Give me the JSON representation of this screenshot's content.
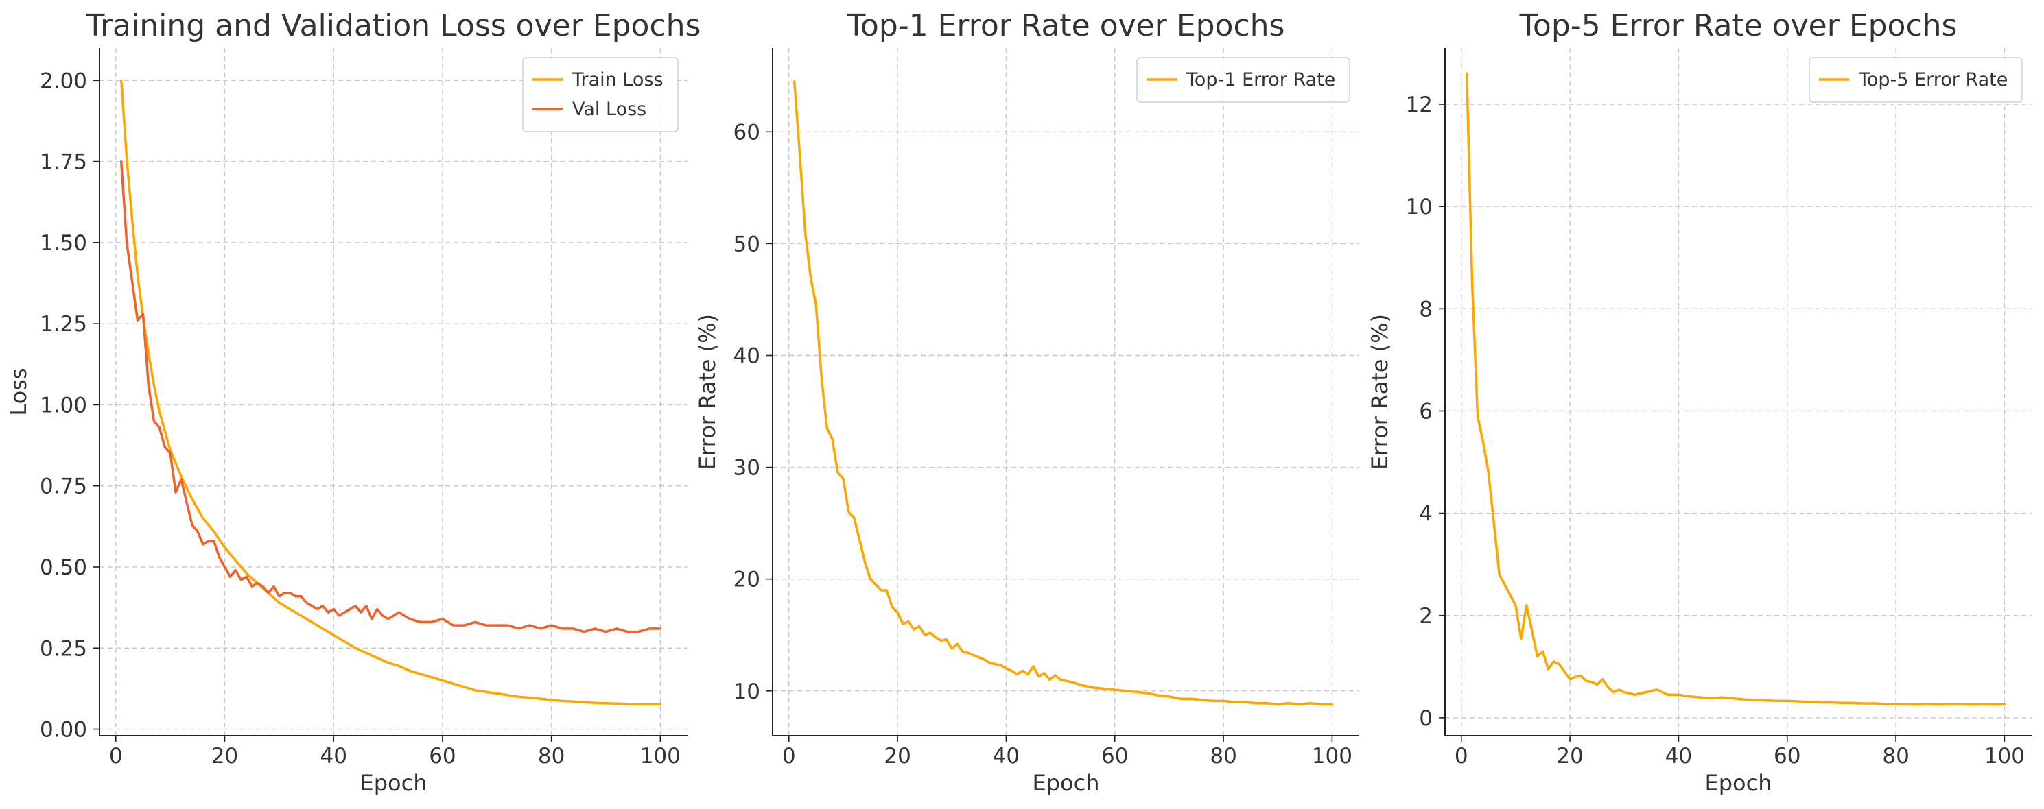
{
  "chart_data": [
    {
      "type": "line",
      "title": "Training and Validation Loss over Epochs",
      "xlabel": "Epoch",
      "ylabel": "Loss",
      "xlim": [
        -3,
        105
      ],
      "ylim": [
        -0.02,
        2.1
      ],
      "xticks": [
        0,
        20,
        40,
        60,
        80,
        100
      ],
      "yticks": [
        0.0,
        0.25,
        0.5,
        0.75,
        1.0,
        1.25,
        1.5,
        1.75,
        2.0
      ],
      "ytick_decimals": 2,
      "grid": true,
      "legend_position": "top-right",
      "series": [
        {
          "name": "Train Loss",
          "color": "#FFA500",
          "x": [
            1,
            2,
            3,
            4,
            5,
            6,
            7,
            8,
            9,
            10,
            12,
            14,
            16,
            18,
            20,
            22,
            24,
            26,
            28,
            30,
            32,
            34,
            36,
            38,
            40,
            42,
            44,
            46,
            48,
            50,
            52,
            54,
            56,
            58,
            60,
            62,
            64,
            66,
            68,
            70,
            72,
            74,
            76,
            78,
            80,
            82,
            84,
            86,
            88,
            90,
            92,
            94,
            96,
            98,
            100
          ],
          "y": [
            2.0,
            1.76,
            1.57,
            1.4,
            1.27,
            1.16,
            1.06,
            0.98,
            0.92,
            0.86,
            0.78,
            0.71,
            0.65,
            0.61,
            0.56,
            0.52,
            0.48,
            0.45,
            0.42,
            0.39,
            0.37,
            0.35,
            0.33,
            0.31,
            0.29,
            0.27,
            0.25,
            0.235,
            0.22,
            0.205,
            0.195,
            0.18,
            0.17,
            0.16,
            0.15,
            0.14,
            0.13,
            0.12,
            0.115,
            0.11,
            0.105,
            0.1,
            0.097,
            0.094,
            0.09,
            0.087,
            0.085,
            0.083,
            0.081,
            0.08,
            0.079,
            0.078,
            0.077,
            0.077,
            0.077
          ]
        },
        {
          "name": "Val Loss",
          "color": "#F0622A",
          "x": [
            1,
            2,
            3,
            4,
            5,
            6,
            7,
            8,
            9,
            10,
            11,
            12,
            13,
            14,
            15,
            16,
            17,
            18,
            19,
            20,
            21,
            22,
            23,
            24,
            25,
            26,
            27,
            28,
            29,
            30,
            31,
            32,
            33,
            34,
            35,
            36,
            37,
            38,
            39,
            40,
            41,
            42,
            43,
            44,
            45,
            46,
            47,
            48,
            49,
            50,
            52,
            54,
            56,
            58,
            60,
            62,
            64,
            66,
            68,
            70,
            72,
            74,
            76,
            78,
            80,
            82,
            84,
            86,
            88,
            90,
            92,
            94,
            96,
            98,
            100
          ],
          "y": [
            1.75,
            1.5,
            1.38,
            1.26,
            1.28,
            1.06,
            0.95,
            0.93,
            0.87,
            0.85,
            0.73,
            0.77,
            0.7,
            0.63,
            0.61,
            0.57,
            0.58,
            0.58,
            0.53,
            0.5,
            0.47,
            0.49,
            0.46,
            0.47,
            0.44,
            0.45,
            0.44,
            0.42,
            0.44,
            0.41,
            0.42,
            0.42,
            0.41,
            0.41,
            0.39,
            0.38,
            0.37,
            0.38,
            0.36,
            0.37,
            0.35,
            0.36,
            0.37,
            0.38,
            0.36,
            0.38,
            0.34,
            0.37,
            0.35,
            0.34,
            0.36,
            0.34,
            0.33,
            0.33,
            0.34,
            0.32,
            0.32,
            0.33,
            0.32,
            0.32,
            0.32,
            0.31,
            0.32,
            0.31,
            0.32,
            0.31,
            0.31,
            0.3,
            0.31,
            0.3,
            0.31,
            0.3,
            0.3,
            0.31,
            0.31
          ]
        }
      ]
    },
    {
      "type": "line",
      "title": "Top-1 Error Rate over Epochs",
      "xlabel": "Epoch",
      "ylabel": "Error Rate (%)",
      "xlim": [
        -3,
        105
      ],
      "ylim": [
        6,
        67.5
      ],
      "xticks": [
        0,
        20,
        40,
        60,
        80,
        100
      ],
      "yticks": [
        10,
        20,
        30,
        40,
        50,
        60
      ],
      "ytick_decimals": 0,
      "grid": true,
      "legend_position": "top-right",
      "series": [
        {
          "name": "Top-1 Error Rate",
          "color": "#FFA500",
          "x": [
            1,
            2,
            3,
            4,
            5,
            6,
            7,
            8,
            9,
            10,
            11,
            12,
            13,
            14,
            15,
            16,
            17,
            18,
            19,
            20,
            21,
            22,
            23,
            24,
            25,
            26,
            27,
            28,
            29,
            30,
            31,
            32,
            33,
            34,
            35,
            36,
            37,
            38,
            39,
            40,
            41,
            42,
            43,
            44,
            45,
            46,
            47,
            48,
            49,
            50,
            52,
            54,
            56,
            58,
            60,
            62,
            64,
            66,
            68,
            70,
            72,
            74,
            76,
            78,
            80,
            82,
            84,
            86,
            88,
            90,
            92,
            94,
            96,
            98,
            100
          ],
          "y": [
            64.5,
            58,
            51,
            47,
            44.5,
            38,
            33.5,
            32.5,
            29.5,
            29,
            26,
            25.5,
            23.5,
            21.5,
            20,
            19.5,
            19,
            19,
            17.5,
            17,
            16,
            16.2,
            15.5,
            15.8,
            15,
            15.2,
            14.8,
            14.5,
            14.6,
            13.8,
            14.2,
            13.5,
            13.4,
            13.2,
            13,
            12.8,
            12.5,
            12.4,
            12.3,
            12,
            11.8,
            11.5,
            11.8,
            11.5,
            12.2,
            11.3,
            11.6,
            11,
            11.4,
            11,
            10.8,
            10.5,
            10.3,
            10.2,
            10.1,
            10,
            9.9,
            9.8,
            9.6,
            9.5,
            9.3,
            9.3,
            9.2,
            9.1,
            9.1,
            9,
            9,
            8.9,
            8.9,
            8.8,
            8.9,
            8.8,
            8.9,
            8.8,
            8.8
          ]
        }
      ]
    },
    {
      "type": "line",
      "title": "Top-5 Error Rate over Epochs",
      "xlabel": "Epoch",
      "ylabel": "Error Rate (%)",
      "xlim": [
        -3,
        105
      ],
      "ylim": [
        -0.35,
        13.1
      ],
      "xticks": [
        0,
        20,
        40,
        60,
        80,
        100
      ],
      "yticks": [
        0,
        2,
        4,
        6,
        8,
        10,
        12
      ],
      "ytick_decimals": 0,
      "grid": true,
      "legend_position": "top-right",
      "series": [
        {
          "name": "Top-5 Error Rate",
          "color": "#FFA500",
          "x": [
            1,
            2,
            3,
            4,
            5,
            6,
            7,
            8,
            9,
            10,
            11,
            12,
            13,
            14,
            15,
            16,
            17,
            18,
            19,
            20,
            21,
            22,
            23,
            24,
            25,
            26,
            27,
            28,
            29,
            30,
            32,
            34,
            36,
            38,
            40,
            42,
            44,
            46,
            48,
            50,
            52,
            54,
            56,
            58,
            60,
            62,
            64,
            66,
            68,
            70,
            72,
            74,
            76,
            78,
            80,
            82,
            84,
            86,
            88,
            90,
            92,
            94,
            96,
            98,
            100
          ],
          "y": [
            12.6,
            8.5,
            5.9,
            5.4,
            4.8,
            3.8,
            2.8,
            2.6,
            2.4,
            2.2,
            1.55,
            2.2,
            1.7,
            1.2,
            1.3,
            0.95,
            1.1,
            1.05,
            0.9,
            0.75,
            0.8,
            0.82,
            0.72,
            0.7,
            0.65,
            0.75,
            0.6,
            0.5,
            0.55,
            0.5,
            0.45,
            0.5,
            0.55,
            0.45,
            0.45,
            0.42,
            0.4,
            0.38,
            0.4,
            0.38,
            0.36,
            0.35,
            0.34,
            0.33,
            0.33,
            0.32,
            0.31,
            0.3,
            0.3,
            0.29,
            0.29,
            0.28,
            0.28,
            0.27,
            0.27,
            0.27,
            0.26,
            0.27,
            0.26,
            0.27,
            0.27,
            0.26,
            0.27,
            0.26,
            0.27
          ]
        }
      ]
    }
  ]
}
